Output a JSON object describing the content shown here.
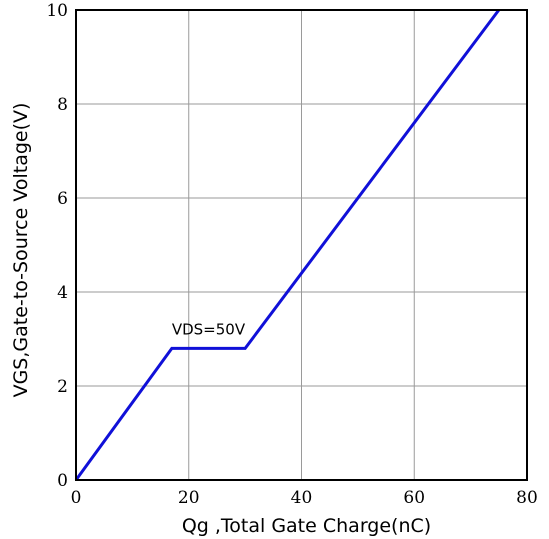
{
  "chart_data": {
    "type": "line",
    "title": "",
    "xlabel": "Qg ,Total Gate Charge(nC)",
    "ylabel": "VGS,Gate-to-Source Voltage(V)",
    "xlim": [
      0,
      80
    ],
    "ylim": [
      0,
      10
    ],
    "x_ticks": [
      "0",
      "20",
      "40",
      "60",
      "80"
    ],
    "y_ticks": [
      "0",
      "2",
      "4",
      "6",
      "8",
      "10"
    ],
    "grid": true,
    "series": [
      {
        "x": [
          0,
          17,
          30,
          75
        ],
        "y": [
          0,
          2.8,
          2.8,
          10
        ],
        "color": "#1010d8"
      }
    ],
    "annotations": [
      {
        "text": "VDS=50V",
        "x": 17,
        "y": 3.1
      }
    ]
  }
}
